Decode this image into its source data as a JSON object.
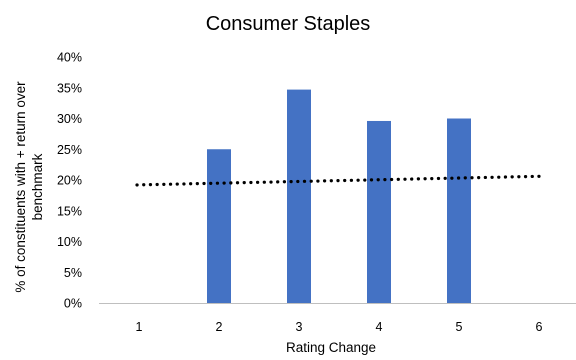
{
  "chart_data": {
    "type": "bar",
    "title": "Consumer Staples",
    "xlabel": "Rating Change",
    "ylabel_lines": [
      "% of constituents with + return over",
      "benchmark"
    ],
    "categories": [
      "1",
      "2",
      "3",
      "4",
      "5",
      "6"
    ],
    "series": [
      {
        "values": [
          0,
          25,
          34.7,
          29.6,
          30,
          0
        ]
      }
    ],
    "trendline": {
      "style": "dotted",
      "start": 19.2,
      "end": 20.6
    },
    "ylim": [
      0,
      40
    ],
    "yticks": [
      0,
      5,
      10,
      15,
      20,
      25,
      30,
      35,
      40
    ],
    "ytick_labels": [
      "0%",
      "5%",
      "10%",
      "15%",
      "20%",
      "25%",
      "30%",
      "35%",
      "40%"
    ],
    "grid": false,
    "colors": {
      "bar": "#4472c4",
      "trendline": "#000000",
      "axis": "#bfbfbf"
    }
  }
}
